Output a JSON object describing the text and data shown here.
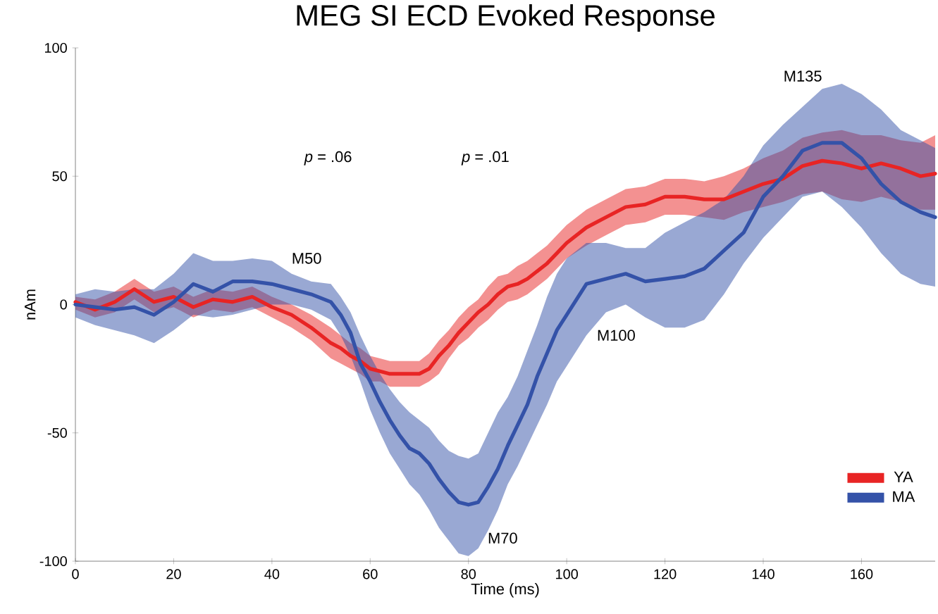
{
  "chart_data": {
    "type": "line",
    "title": "MEG SI ECD Evoked Response",
    "xlabel": "Time (ms)",
    "ylabel": "nAm",
    "x": [
      0,
      4,
      8,
      12,
      16,
      20,
      24,
      28,
      32,
      36,
      40,
      44,
      48,
      52,
      54,
      56,
      58,
      60,
      62,
      64,
      66,
      68,
      70,
      72,
      74,
      76,
      78,
      80,
      82,
      84,
      86,
      88,
      90,
      92,
      94,
      96,
      98,
      100,
      104,
      108,
      112,
      116,
      120,
      124,
      128,
      132,
      136,
      140,
      144,
      148,
      152,
      156,
      160,
      164,
      168,
      172,
      175
    ],
    "series": [
      {
        "name": "YA",
        "color": "#e82424",
        "values": [
          1,
          -2,
          1,
          6,
          1,
          3,
          -1,
          2,
          1,
          3,
          -1,
          -4,
          -9,
          -15,
          -17,
          -20,
          -22,
          -25,
          -26,
          -27,
          -27,
          -27,
          -27,
          -25,
          -20,
          -16,
          -11,
          -7,
          -3,
          0,
          4,
          7,
          8,
          10,
          13,
          16,
          20,
          24,
          30,
          34,
          38,
          39,
          42,
          42,
          41,
          41,
          44,
          47,
          49,
          54,
          56,
          55,
          53,
          55,
          53,
          50,
          51
        ],
        "upper": [
          3,
          2,
          5,
          10,
          5,
          7,
          3,
          6,
          5,
          7,
          3,
          0,
          -4,
          -9,
          -12,
          -15,
          -17,
          -20,
          -21,
          -22,
          -22,
          -22,
          -22,
          -19,
          -14,
          -10,
          -5,
          -1,
          2,
          7,
          11,
          12,
          15,
          17,
          20,
          23,
          27,
          31,
          37,
          41,
          45,
          46,
          49,
          49,
          48,
          50,
          53,
          57,
          60,
          65,
          67,
          68,
          66,
          66,
          64,
          63,
          66
        ],
        "lower": [
          -2,
          -5,
          -3,
          2,
          -3,
          -1,
          -5,
          -2,
          -3,
          -1,
          -5,
          -9,
          -14,
          -21,
          -23,
          -25,
          -27,
          -30,
          -30,
          -32,
          -32,
          -32,
          -32,
          -30,
          -27,
          -21,
          -16,
          -13,
          -9,
          -6,
          -2,
          1,
          2,
          4,
          7,
          10,
          14,
          18,
          23,
          27,
          31,
          32,
          35,
          35,
          34,
          33,
          36,
          38,
          40,
          43,
          44,
          41,
          40,
          42,
          40,
          37,
          37
        ]
      },
      {
        "name": "MA",
        "color": "#3452a8",
        "values": [
          0,
          -1,
          -2,
          -1,
          -4,
          1,
          8,
          5,
          9,
          9,
          8,
          6,
          4,
          1,
          -4,
          -11,
          -23,
          -30,
          -38,
          -45,
          -51,
          -56,
          -58,
          -62,
          -68,
          -73,
          -77,
          -78,
          -77,
          -71,
          -64,
          -55,
          -47,
          -39,
          -28,
          -19,
          -10,
          -4,
          8,
          10,
          12,
          9,
          10,
          11,
          14,
          21,
          28,
          42,
          50,
          60,
          63,
          63,
          57,
          47,
          40,
          36,
          34
        ],
        "upper": [
          4,
          6,
          5,
          6,
          6,
          12,
          20,
          17,
          17,
          18,
          17,
          12,
          9,
          8,
          3,
          -3,
          -12,
          -20,
          -27,
          -33,
          -38,
          -42,
          -45,
          -48,
          -53,
          -57,
          -59,
          -60,
          -58,
          -50,
          -42,
          -36,
          -28,
          -18,
          -8,
          3,
          12,
          18,
          24,
          24,
          22,
          22,
          28,
          32,
          36,
          41,
          50,
          62,
          70,
          77,
          84,
          86,
          82,
          76,
          68,
          64,
          61
        ],
        "lower": [
          -5,
          -8,
          -10,
          -12,
          -15,
          -10,
          -4,
          -5,
          -4,
          -2,
          0,
          0,
          -2,
          -6,
          -12,
          -20,
          -30,
          -41,
          -50,
          -58,
          -64,
          -70,
          -74,
          -80,
          -87,
          -92,
          -97,
          -98,
          -95,
          -88,
          -80,
          -70,
          -63,
          -55,
          -47,
          -39,
          -30,
          -24,
          -12,
          -3,
          0,
          -5,
          -9,
          -9,
          -6,
          4,
          16,
          26,
          34,
          42,
          44,
          38,
          30,
          20,
          12,
          8,
          7
        ]
      }
    ],
    "xlim": [
      0,
      175
    ],
    "xticks": [
      0,
      20,
      40,
      60,
      80,
      100,
      120,
      140,
      160
    ],
    "ylim": [
      -100,
      100
    ],
    "yticks": [
      -100,
      -50,
      0,
      50,
      100
    ],
    "legend": "bottom right",
    "annotations": [
      "*p* = .06",
      "*p* = .01",
      "M50",
      "M70",
      "M100",
      "M135"
    ]
  }
}
